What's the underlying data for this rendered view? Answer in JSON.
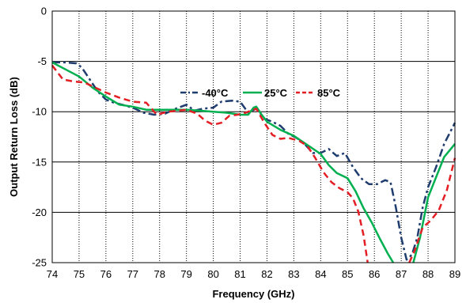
{
  "chart_data": {
    "type": "line",
    "xlabel": "Frequency (GHz)",
    "ylabel": "Output Return Loss (dB)",
    "xlim": [
      74,
      89
    ],
    "ylim": [
      -25,
      0
    ],
    "x_ticks": [
      74,
      75,
      76,
      77,
      78,
      79,
      80,
      81,
      82,
      83,
      84,
      85,
      86,
      87,
      88,
      89
    ],
    "y_ticks": [
      0,
      -5,
      -10,
      -15,
      -20,
      -25
    ],
    "grid": {
      "x": "dotted",
      "y": "solid"
    },
    "legend_position": "inside-top-center",
    "series": [
      {
        "name": "-40°C",
        "color": "#1f3d6e",
        "dash": "dash-dot",
        "points": [
          [
            74,
            -5.1
          ],
          [
            74.5,
            -5.1
          ],
          [
            74.9,
            -5.2
          ],
          [
            75.1,
            -5.6
          ],
          [
            75.4,
            -6.8
          ],
          [
            75.7,
            -8.0
          ],
          [
            76,
            -8.8
          ],
          [
            76.3,
            -9.1
          ],
          [
            76.6,
            -9.3
          ],
          [
            77,
            -9.6
          ],
          [
            77.4,
            -10.1
          ],
          [
            77.8,
            -10.3
          ],
          [
            78.2,
            -10.2
          ],
          [
            78.6,
            -9.7
          ],
          [
            79,
            -9.3
          ],
          [
            79.3,
            -9.9
          ],
          [
            79.6,
            -9.7
          ],
          [
            80,
            -9.6
          ],
          [
            80.3,
            -9.0
          ],
          [
            80.7,
            -8.9
          ],
          [
            81,
            -9.0
          ],
          [
            81.3,
            -10.1
          ],
          [
            81.6,
            -9.7
          ],
          [
            81.9,
            -10.7
          ],
          [
            82.2,
            -11.0
          ],
          [
            82.5,
            -11.4
          ],
          [
            82.8,
            -12.2
          ],
          [
            83.1,
            -12.6
          ],
          [
            83.4,
            -13.2
          ],
          [
            83.7,
            -14.1
          ],
          [
            84,
            -14.1
          ],
          [
            84.3,
            -13.7
          ],
          [
            84.6,
            -14.4
          ],
          [
            84.9,
            -14.1
          ],
          [
            85.2,
            -15.5
          ],
          [
            85.5,
            -16.6
          ],
          [
            85.8,
            -17.2
          ],
          [
            86.1,
            -17.2
          ],
          [
            86.4,
            -16.8
          ],
          [
            86.6,
            -17.0
          ],
          [
            86.8,
            -19.5
          ],
          [
            87,
            -22.5
          ],
          [
            87.2,
            -24.7
          ],
          [
            87.4,
            -24.2
          ],
          [
            87.6,
            -22.5
          ],
          [
            87.8,
            -19.5
          ],
          [
            88,
            -17.5
          ],
          [
            88.3,
            -15.5
          ],
          [
            88.6,
            -13.2
          ],
          [
            89,
            -11.1
          ]
        ]
      },
      {
        "name": "25°C",
        "color": "#00b050",
        "dash": "solid",
        "points": [
          [
            74,
            -5.1
          ],
          [
            74.5,
            -5.8
          ],
          [
            75,
            -6.5
          ],
          [
            75.5,
            -7.6
          ],
          [
            76,
            -8.5
          ],
          [
            76.5,
            -9.3
          ],
          [
            77,
            -9.5
          ],
          [
            77.5,
            -9.8
          ],
          [
            78,
            -9.8
          ],
          [
            78.5,
            -9.8
          ],
          [
            79,
            -9.8
          ],
          [
            79.5,
            -9.9
          ],
          [
            80,
            -10.0
          ],
          [
            80.5,
            -10.1
          ],
          [
            81,
            -10.3
          ],
          [
            81.3,
            -10.3
          ],
          [
            81.5,
            -9.6
          ],
          [
            81.6,
            -9.5
          ],
          [
            81.8,
            -10.3
          ],
          [
            82,
            -11.0
          ],
          [
            82.5,
            -11.8
          ],
          [
            83,
            -12.4
          ],
          [
            83.5,
            -13.3
          ],
          [
            84,
            -14.2
          ],
          [
            84.3,
            -15.3
          ],
          [
            84.6,
            -16.1
          ],
          [
            85,
            -16.6
          ],
          [
            85.3,
            -17.9
          ],
          [
            85.6,
            -19.6
          ],
          [
            85.9,
            -21.0
          ],
          [
            86.2,
            -22.6
          ],
          [
            86.5,
            -24.1
          ],
          [
            86.7,
            -25.0
          ]
        ]
      },
      {
        "name": "25°C",
        "color": "#00b050",
        "dash": "solid",
        "points": [
          [
            87.45,
            -25.0
          ],
          [
            87.7,
            -22.5
          ],
          [
            88,
            -18.5
          ],
          [
            88.3,
            -16.5
          ],
          [
            88.6,
            -14.5
          ],
          [
            89,
            -13.2
          ]
        ]
      },
      {
        "name": "85°C",
        "color": "#e31e24",
        "dash": "dash",
        "points": [
          [
            74,
            -5.4
          ],
          [
            74.4,
            -6.8
          ],
          [
            74.8,
            -7.0
          ],
          [
            75.2,
            -7.1
          ],
          [
            75.6,
            -7.6
          ],
          [
            76,
            -8.1
          ],
          [
            76.5,
            -8.6
          ],
          [
            77,
            -9.0
          ],
          [
            77.5,
            -9.1
          ],
          [
            77.9,
            -10.3
          ],
          [
            78.3,
            -10.0
          ],
          [
            78.7,
            -9.9
          ],
          [
            79,
            -9.8
          ],
          [
            79.4,
            -10.2
          ],
          [
            79.7,
            -10.9
          ],
          [
            80,
            -11.3
          ],
          [
            80.3,
            -11.1
          ],
          [
            80.6,
            -10.4
          ],
          [
            80.9,
            -10.3
          ],
          [
            81.2,
            -10.1
          ],
          [
            81.6,
            -9.7
          ],
          [
            81.9,
            -11.1
          ],
          [
            82.2,
            -12.3
          ],
          [
            82.5,
            -12.7
          ],
          [
            82.8,
            -12.6
          ],
          [
            83.2,
            -12.9
          ],
          [
            83.5,
            -13.4
          ],
          [
            83.8,
            -14.6
          ],
          [
            84.1,
            -16.0
          ],
          [
            84.4,
            -17.0
          ],
          [
            84.7,
            -17.6
          ],
          [
            85,
            -18.0
          ],
          [
            85.2,
            -18.6
          ],
          [
            85.4,
            -19.9
          ],
          [
            85.6,
            -22.3
          ],
          [
            85.75,
            -25.0
          ]
        ]
      },
      {
        "name": "85°C",
        "color": "#e31e24",
        "dash": "dash",
        "points": [
          [
            87.3,
            -25.0
          ],
          [
            87.5,
            -23.8
          ],
          [
            87.8,
            -21.5
          ],
          [
            88.1,
            -20.8
          ],
          [
            88.4,
            -19.8
          ],
          [
            88.7,
            -17.8
          ],
          [
            89,
            -14.6
          ]
        ]
      }
    ],
    "legend": [
      {
        "label": "-40°C",
        "color": "#1f3d6e",
        "dash": "dash-dot"
      },
      {
        "label": "25°C",
        "color": "#00b050",
        "dash": "solid"
      },
      {
        "label": "85°C",
        "color": "#e31e24",
        "dash": "dash"
      }
    ]
  }
}
